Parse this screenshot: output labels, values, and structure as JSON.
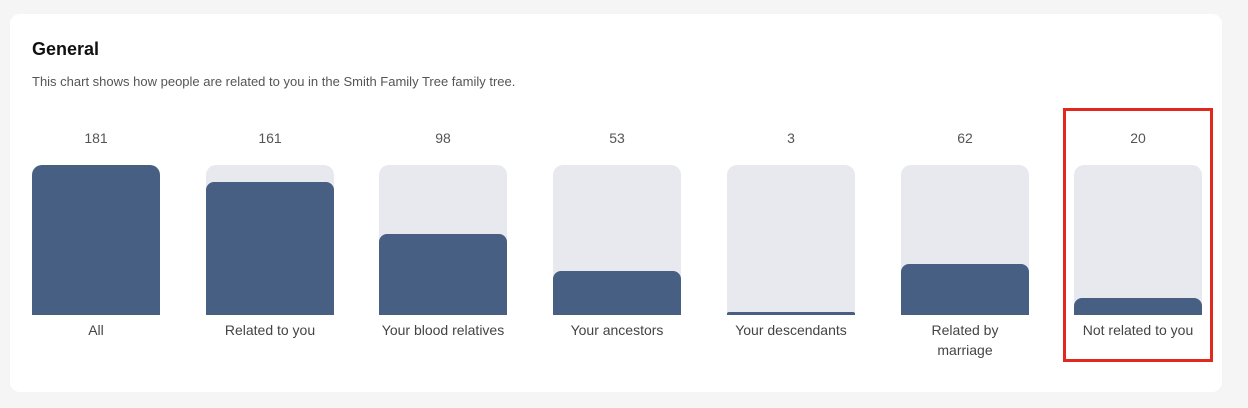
{
  "card": {
    "title": "General",
    "subtitle": "This chart shows how people are related to you in the Smith Family Tree family tree."
  },
  "chart_data": {
    "type": "bar",
    "categories": [
      "All",
      "Related to you",
      "Your blood relatives",
      "Your ancestors",
      "Your descendants",
      "Related by marriage",
      "Not related to you"
    ],
    "values": [
      181,
      161,
      98,
      53,
      3,
      62,
      20
    ],
    "ylim": [
      0,
      181
    ],
    "grid": false,
    "legend": "none",
    "colors": {
      "bar": "#465f82",
      "track": "#e8e9ef"
    }
  },
  "highlight": {
    "category_index": 6,
    "color": "#e0281e"
  }
}
